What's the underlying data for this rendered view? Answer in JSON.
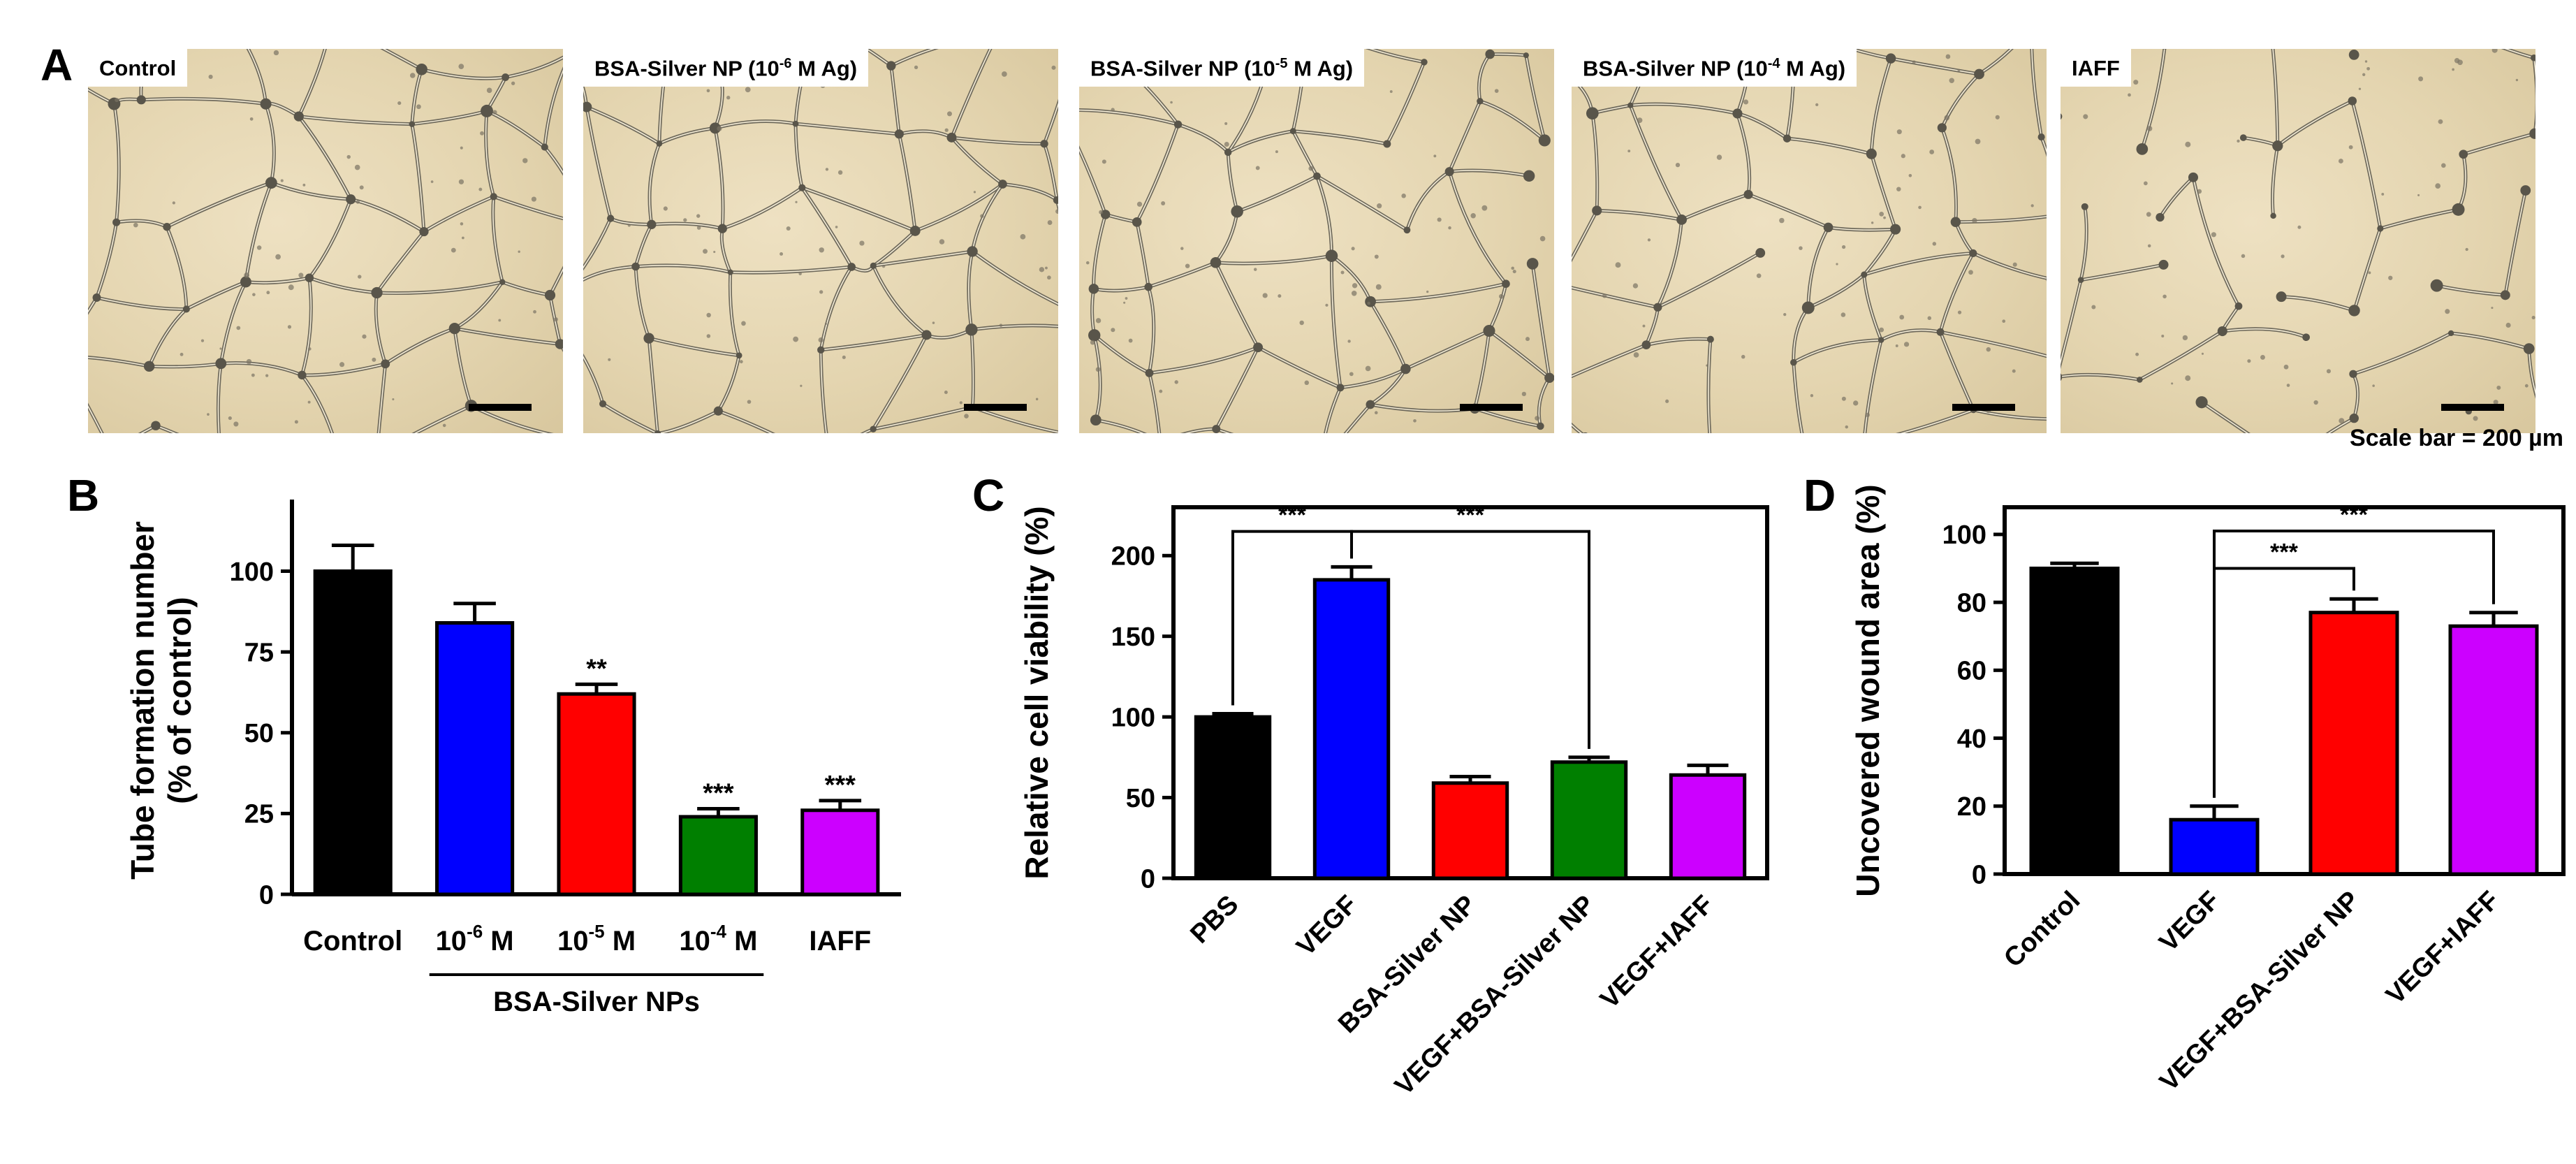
{
  "panel_letters": {
    "a": "A",
    "b": "B",
    "c": "C",
    "d": "D"
  },
  "micrographs": [
    {
      "label_main": "Control",
      "label_sup": "",
      "label_tail": ""
    },
    {
      "label_main": "BSA-Silver NP (10",
      "label_sup": "-6",
      "label_tail": " M Ag)"
    },
    {
      "label_main": "BSA-Silver NP (10",
      "label_sup": "-5",
      "label_tail": " M Ag)"
    },
    {
      "label_main": "BSA-Silver NP (10",
      "label_sup": "-4",
      "label_tail": " M Ag)"
    },
    {
      "label_main": "IAFF",
      "label_sup": "",
      "label_tail": ""
    }
  ],
  "scale_caption": "Scale bar = 200 µm",
  "colors": {
    "black": "#000000",
    "blue": "#0000ff",
    "red": "#ff0000",
    "green": "#007f00",
    "magenta": "#cc00ff"
  },
  "chart_data": [
    {
      "panel": "B",
      "type": "bar",
      "title": "",
      "ylabel": "Tube formation number",
      "ylabel2": "(% of control)",
      "ylim": [
        0,
        120
      ],
      "yticks": [
        0,
        25,
        50,
        75,
        100
      ],
      "categories": [
        {
          "main": "Control",
          "exp": "",
          "tail": ""
        },
        {
          "main": "10",
          "exp": "-6",
          "tail": " M"
        },
        {
          "main": "10",
          "exp": "-5",
          "tail": " M"
        },
        {
          "main": "10",
          "exp": "-4",
          "tail": " M"
        },
        {
          "main": "IAFF",
          "exp": "",
          "tail": ""
        }
      ],
      "values": [
        100,
        84,
        62,
        24,
        26
      ],
      "errors": [
        8,
        6,
        3,
        2.5,
        3
      ],
      "bar_colors": [
        "#000000",
        "#0000ff",
        "#ff0000",
        "#007f00",
        "#cc00ff"
      ],
      "significance": [
        "",
        "",
        "**",
        "***",
        "***"
      ],
      "group_label": "BSA-Silver NPs"
    },
    {
      "panel": "C",
      "type": "bar",
      "title": "",
      "ylabel": "Relative cell viability (%)",
      "ylim": [
        0,
        230
      ],
      "yticks": [
        0,
        50,
        100,
        150,
        200
      ],
      "categories": [
        "PBS",
        "VEGF",
        "BSA-Silver NP",
        "VEGF+BSA-Silver NP",
        "VEGF+IAFF"
      ],
      "values": [
        100,
        185,
        59,
        72,
        64
      ],
      "errors": [
        2,
        8,
        4,
        3,
        6
      ],
      "bar_colors": [
        "#000000",
        "#0000ff",
        "#ff0000",
        "#007f00",
        "#cc00ff"
      ],
      "brackets": [
        {
          "from": 0,
          "to": 1,
          "y": 215,
          "label": "***"
        },
        {
          "from": 1,
          "to": 3,
          "y": 215,
          "label": "***"
        }
      ]
    },
    {
      "panel": "D",
      "type": "bar",
      "title": "",
      "ylabel": "Uncovered wound area (%)",
      "ylim": [
        0,
        108
      ],
      "yticks": [
        0,
        20,
        40,
        60,
        80,
        100
      ],
      "categories": [
        "Control",
        "VEGF",
        "VEGF+BSA-Silver NP",
        "VEGF+IAFF"
      ],
      "values": [
        90,
        16,
        77,
        73
      ],
      "errors": [
        1.5,
        4,
        4,
        4
      ],
      "bar_colors": [
        "#000000",
        "#0000ff",
        "#ff0000",
        "#cc00ff"
      ],
      "brackets": [
        {
          "from": 1,
          "to": 2,
          "y": 90,
          "label": "***"
        },
        {
          "from": 1,
          "to": 3,
          "y": 101,
          "label": "***"
        }
      ]
    }
  ]
}
